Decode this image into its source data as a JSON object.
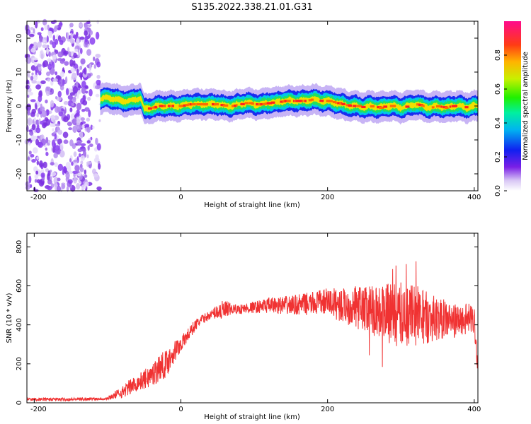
{
  "title": "S135.2022.338.21.01.G31",
  "chart_data": [
    {
      "type": "heatmap",
      "xlabel": "Height of straight line (km)",
      "ylabel": "Frequency (Hz)",
      "xlim": [
        -210,
        405
      ],
      "ylim": [
        -25,
        25
      ],
      "xticks": [
        "-200",
        "0",
        "200",
        "400"
      ],
      "yticks": [
        "-20",
        "-10",
        "0",
        "10",
        "20"
      ],
      "colorbar": {
        "label": "Normalized spectral amplitude",
        "ticks": [
          "0.0",
          "0.2",
          "0.4",
          "0.6",
          "0.8"
        ],
        "range": [
          0,
          1
        ]
      },
      "noise_region_x": [
        -210,
        -110
      ],
      "ridge": {
        "x": [
          -110,
          -100,
          -90,
          -80,
          -70,
          -60,
          -55,
          -50,
          -40,
          -30,
          -20,
          -10,
          0,
          10,
          20,
          30,
          40,
          50,
          60,
          70,
          80,
          90,
          100,
          110,
          120,
          130,
          140,
          150,
          160,
          170,
          180,
          190,
          200,
          210,
          220,
          230,
          240,
          250,
          260,
          270,
          280,
          290,
          300,
          310,
          320,
          330,
          340,
          350,
          360,
          370,
          380,
          390,
          400
        ],
        "frequency_hz": [
          2.0,
          2.5,
          2.0,
          1.5,
          1.5,
          2.0,
          2.5,
          -1.0,
          -0.5,
          0.0,
          0.0,
          0.0,
          0.0,
          0.5,
          0.5,
          0.5,
          0.5,
          0.5,
          0.0,
          0.0,
          0.5,
          1.0,
          0.5,
          0.5,
          1.0,
          1.0,
          1.5,
          1.5,
          1.5,
          1.5,
          2.0,
          1.5,
          1.5,
          1.0,
          0.5,
          0.0,
          0.0,
          -0.5,
          0.0,
          -0.5,
          0.0,
          0.0,
          -0.5,
          0.0,
          0.5,
          0.0,
          -0.5,
          0.0,
          -0.5,
          0.0,
          0.0,
          -0.5,
          0.0
        ]
      }
    },
    {
      "type": "line",
      "xlabel": "Height of straight line (km)",
      "ylabel": "SNR (10 * v/v)",
      "xlim": [
        -210,
        405
      ],
      "ylim": [
        0,
        870
      ],
      "xticks": [
        "-200",
        "0",
        "200",
        "400"
      ],
      "yticks": [
        "0",
        "200",
        "400",
        "600",
        "800"
      ],
      "color": "#f03232",
      "series": [
        {
          "x": [
            -210,
            -150,
            -100,
            -90,
            -80,
            -70,
            -60,
            -50,
            -40,
            -30,
            -20,
            -10,
            0,
            10,
            20,
            30,
            40,
            50,
            60,
            70,
            80,
            100,
            120,
            150,
            180,
            200,
            220,
            240,
            260,
            280,
            300,
            310,
            320,
            330,
            340,
            350,
            360,
            370,
            380,
            390,
            400,
            405
          ],
          "y": [
            18,
            18,
            22,
            40,
            55,
            80,
            100,
            120,
            140,
            180,
            200,
            260,
            300,
            350,
            400,
            430,
            450,
            470,
            470,
            480,
            480,
            490,
            500,
            500,
            510,
            520,
            500,
            490,
            480,
            460,
            450,
            460,
            450,
            440,
            440,
            430,
            430,
            420,
            420,
            430,
            430,
            180
          ],
          "spread": [
            8,
            8,
            8,
            20,
            30,
            40,
            40,
            50,
            60,
            70,
            70,
            60,
            40,
            35,
            30,
            25,
            20,
            40,
            60,
            25,
            25,
            30,
            40,
            50,
            60,
            70,
            90,
            110,
            130,
            150,
            170,
            180,
            170,
            150,
            130,
            110,
            100,
            90,
            80,
            80,
            80,
            50
          ]
        }
      ]
    }
  ]
}
